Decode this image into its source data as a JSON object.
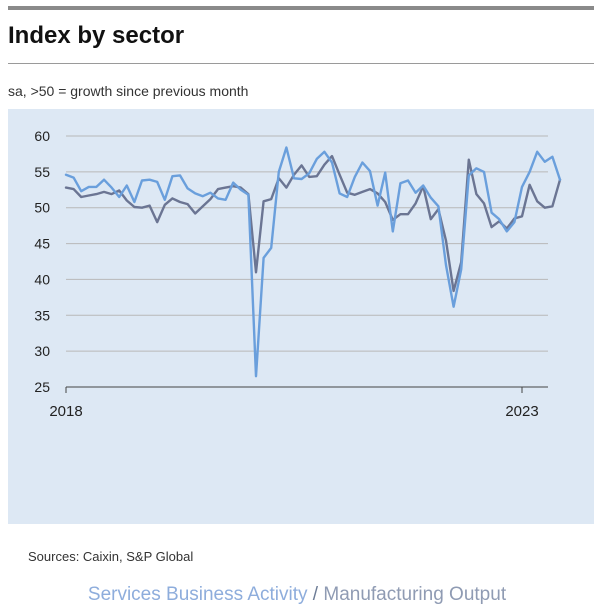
{
  "header": {
    "title": "Index by sector",
    "subtitle": "sa, >50 = growth since previous month"
  },
  "footer": {
    "sources": "Sources: Caixin, S&P Global"
  },
  "legend": {
    "separator": " / "
  },
  "colors": {
    "panel_background": "#dde8f4",
    "services": "#6a9fdc",
    "manufacturing": "#6b7593",
    "gridline": "#b8b8b8"
  },
  "chart_data": {
    "type": "line",
    "xlabel": "",
    "ylabel": "",
    "x_tick_labels": [
      "2018",
      "2023"
    ],
    "y_ticks": [
      25,
      30,
      35,
      40,
      45,
      50,
      55,
      60
    ],
    "ylim": [
      25,
      60
    ],
    "xlim": [
      "2018-01",
      "2023-07"
    ],
    "grid": "horizontal",
    "series": [
      {
        "name": "Services Business Activity",
        "x": [
          "2018-01",
          "2018-02",
          "2018-03",
          "2018-04",
          "2018-05",
          "2018-06",
          "2018-07",
          "2018-08",
          "2018-09",
          "2018-10",
          "2018-11",
          "2018-12",
          "2019-01",
          "2019-02",
          "2019-03",
          "2019-04",
          "2019-05",
          "2019-06",
          "2019-07",
          "2019-08",
          "2019-09",
          "2019-10",
          "2019-11",
          "2019-12",
          "2020-01",
          "2020-02",
          "2020-03",
          "2020-04",
          "2020-05",
          "2020-06",
          "2020-07",
          "2020-08",
          "2020-09",
          "2020-10",
          "2020-11",
          "2020-12",
          "2021-01",
          "2021-02",
          "2021-03",
          "2021-04",
          "2021-05",
          "2021-06",
          "2021-07",
          "2021-08",
          "2021-09",
          "2021-10",
          "2021-11",
          "2021-12",
          "2022-01",
          "2022-02",
          "2022-03",
          "2022-04",
          "2022-05",
          "2022-06",
          "2022-07",
          "2022-08",
          "2022-09",
          "2022-10",
          "2022-11",
          "2022-12",
          "2023-01",
          "2023-02",
          "2023-03",
          "2023-04",
          "2023-05",
          "2023-06"
        ],
        "values": [
          54.6,
          54.2,
          52.3,
          52.9,
          52.9,
          53.9,
          52.8,
          51.5,
          53.1,
          50.8,
          53.8,
          53.9,
          53.6,
          51.1,
          54.4,
          54.5,
          52.7,
          52.0,
          51.6,
          52.1,
          51.3,
          51.1,
          53.5,
          52.5,
          51.8,
          26.5,
          43.0,
          44.4,
          55.0,
          58.4,
          54.1,
          54.0,
          54.8,
          56.8,
          57.8,
          56.3,
          52.0,
          51.5,
          54.3,
          56.3,
          55.1,
          50.3,
          54.9,
          46.7,
          53.4,
          53.8,
          52.1,
          53.1,
          51.4,
          50.2,
          42.0,
          36.2,
          41.4,
          54.5,
          55.5,
          55.0,
          49.3,
          48.4,
          46.7,
          48.0,
          52.9,
          55.0,
          57.8,
          56.4,
          57.1,
          53.9
        ]
      },
      {
        "name": "Manufacturing Output",
        "x": [
          "2018-01",
          "2018-02",
          "2018-03",
          "2018-04",
          "2018-05",
          "2018-06",
          "2018-07",
          "2018-08",
          "2018-09",
          "2018-10",
          "2018-11",
          "2018-12",
          "2019-01",
          "2019-02",
          "2019-03",
          "2019-04",
          "2019-05",
          "2019-06",
          "2019-07",
          "2019-08",
          "2019-09",
          "2019-10",
          "2019-11",
          "2019-12",
          "2020-01",
          "2020-02",
          "2020-03",
          "2020-04",
          "2020-05",
          "2020-06",
          "2020-07",
          "2020-08",
          "2020-09",
          "2020-10",
          "2020-11",
          "2020-12",
          "2021-01",
          "2021-02",
          "2021-03",
          "2021-04",
          "2021-05",
          "2021-06",
          "2021-07",
          "2021-08",
          "2021-09",
          "2021-10",
          "2021-11",
          "2021-12",
          "2022-01",
          "2022-02",
          "2022-03",
          "2022-04",
          "2022-05",
          "2022-06",
          "2022-07",
          "2022-08",
          "2022-09",
          "2022-10",
          "2022-11",
          "2022-12",
          "2023-01",
          "2023-02",
          "2023-03",
          "2023-04",
          "2023-05",
          "2023-06"
        ],
        "values": [
          52.8,
          52.6,
          51.5,
          51.7,
          51.9,
          52.2,
          51.9,
          52.4,
          51.0,
          50.1,
          50.0,
          50.3,
          48.0,
          50.4,
          51.3,
          50.8,
          50.5,
          49.2,
          50.2,
          51.2,
          52.6,
          52.8,
          53.0,
          52.8,
          51.9,
          41.0,
          50.9,
          51.2,
          54.1,
          52.8,
          54.6,
          55.9,
          54.3,
          54.4,
          56.0,
          57.2,
          54.6,
          52.1,
          51.8,
          52.2,
          52.6,
          52.0,
          50.8,
          48.3,
          49.1,
          49.1,
          50.6,
          53.0,
          48.4,
          49.8,
          45.4,
          38.4,
          42.4,
          56.7,
          51.9,
          50.6,
          47.3,
          48.1,
          47.1,
          48.5,
          48.8,
          53.2,
          50.9,
          50.0,
          50.2,
          53.9
        ]
      }
    ]
  }
}
